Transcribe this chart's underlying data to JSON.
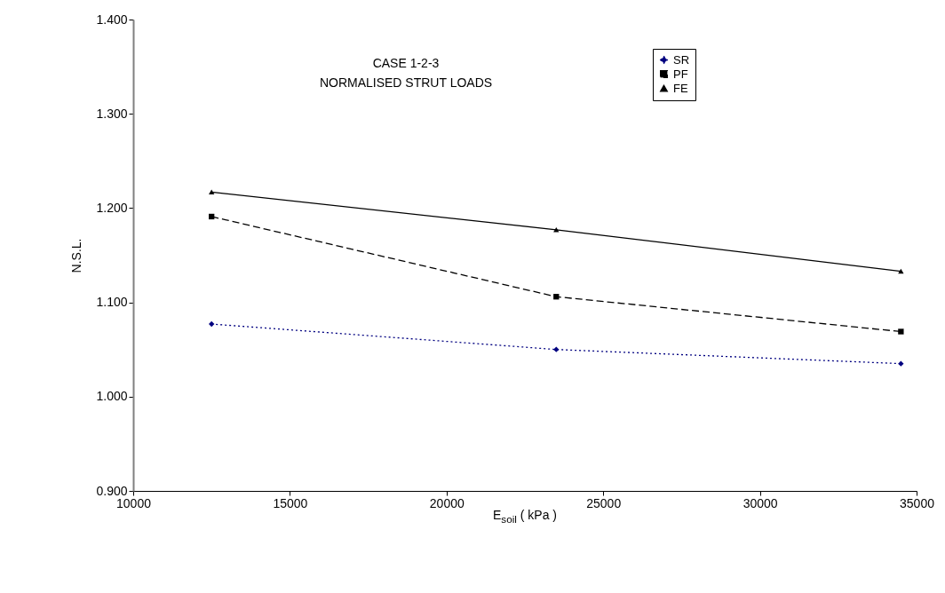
{
  "chart_data": {
    "type": "line",
    "xlabel": "E$_{soil}$ ( kPa )",
    "ylabel": "N.S.L.",
    "annotations": [
      "CASE 1-2-3",
      "NORMALISED STRUT LOADS"
    ],
    "x": [
      12500,
      23500,
      34500
    ],
    "series": [
      {
        "name": "SR",
        "color": "#000080",
        "values": [
          1.077,
          1.05,
          1.035
        ],
        "marker": "diamond",
        "line_style": "dotted"
      },
      {
        "name": "PF",
        "color": "#000000",
        "values": [
          1.191,
          1.106,
          1.069
        ],
        "marker": "square",
        "line_style": "dashed"
      },
      {
        "name": "FE",
        "color": "#000000",
        "values": [
          1.217,
          1.177,
          1.133
        ],
        "marker": "triangle",
        "line_style": "solid"
      }
    ],
    "xlim": [
      10000,
      35000
    ],
    "xticks": [
      10000,
      15000,
      20000,
      25000,
      30000,
      35000
    ],
    "ylim": [
      0.9,
      1.4
    ],
    "yticks": [
      {
        "value": 0.9,
        "label": "0.900"
      },
      {
        "value": 1.0,
        "label": "1.000"
      },
      {
        "value": 1.1,
        "label": "1.100"
      },
      {
        "value": 1.2,
        "label": "1.200"
      },
      {
        "value": 1.3,
        "label": "1.300"
      },
      {
        "value": 1.4,
        "label": "1.400"
      }
    ],
    "grid": false,
    "legend": "top right"
  }
}
